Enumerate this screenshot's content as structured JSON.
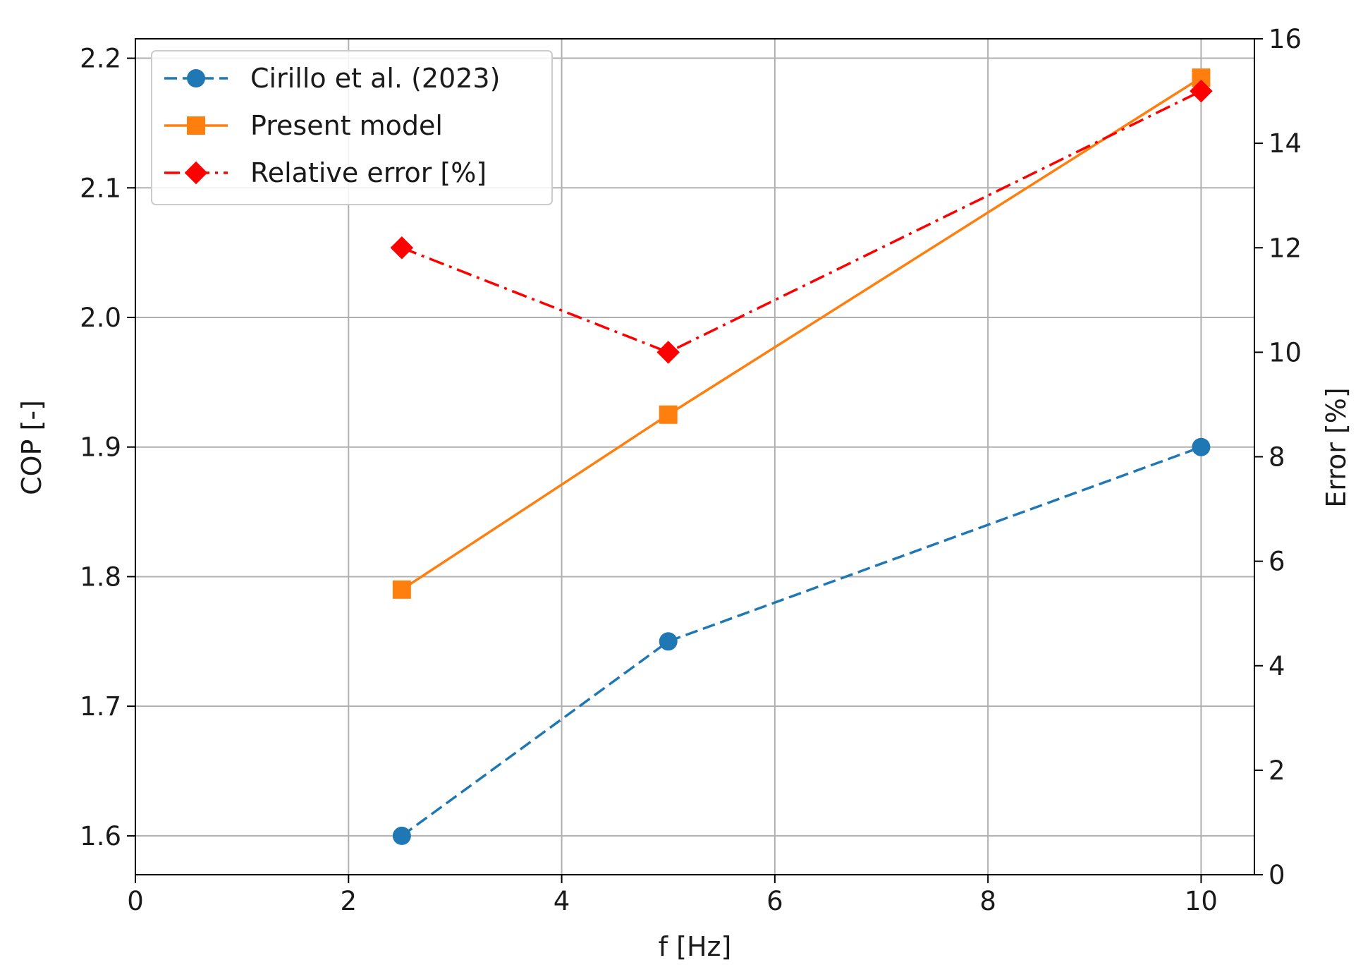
{
  "chart_data": {
    "type": "line",
    "title": "",
    "xlabel": "f [Hz]",
    "ylabel_left": "COP [-]",
    "ylabel_right": "Error [%]",
    "xlim": [
      0,
      10.5
    ],
    "ylim_left": [
      1.57,
      2.215
    ],
    "ylim_right": [
      0,
      16
    ],
    "x_ticks": [
      0,
      2,
      4,
      6,
      8,
      10
    ],
    "y_ticks_left": [
      1.6,
      1.7,
      1.8,
      1.9,
      2.0,
      2.1,
      2.2
    ],
    "y_ticks_right": [
      0,
      2,
      4,
      6,
      8,
      10,
      12,
      14,
      16
    ],
    "grid": true,
    "legend_position": "top-left",
    "series": [
      {
        "name": "Cirillo et al. (2023)",
        "axis": "left",
        "color": "#1f77b4",
        "linestyle": "dashed",
        "marker": "circle",
        "x": [
          2.5,
          5,
          10
        ],
        "y": [
          1.6,
          1.75,
          1.9
        ]
      },
      {
        "name": "Present model",
        "axis": "left",
        "color": "#ff7f0e",
        "linestyle": "solid",
        "marker": "square",
        "x": [
          2.5,
          5,
          10
        ],
        "y": [
          1.79,
          1.925,
          2.185
        ]
      },
      {
        "name": "Relative error [%]",
        "axis": "right",
        "color": "#ff0000",
        "linestyle": "dashdot",
        "marker": "diamond",
        "x": [
          2.5,
          5,
          10
        ],
        "y": [
          12,
          10,
          15
        ]
      }
    ]
  }
}
